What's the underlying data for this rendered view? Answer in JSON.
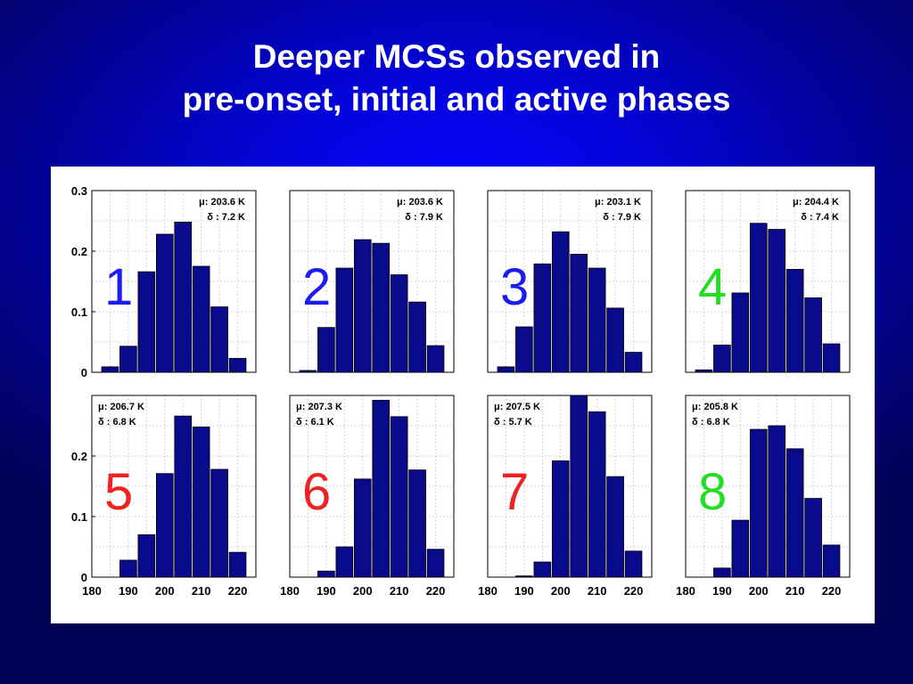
{
  "slide": {
    "title_line1": "Deeper MCSs observed in",
    "title_line2": "pre-onset, initial and active phases"
  },
  "colors": {
    "background": "#0303d8",
    "bar_fill": "#0a0a8c",
    "bar_edge": "#000000",
    "label_blue": "#1c1cf0",
    "label_green": "#22dd22",
    "label_red": "#ee2222"
  },
  "chart_data": [
    {
      "type": "bar",
      "panel_label": "1",
      "label_color": "#1c1cf0",
      "mu": "μ: 203.6 K",
      "delta": "δ : 7.2 K",
      "x": [
        185,
        190,
        195,
        200,
        205,
        210,
        215,
        220
      ],
      "values": [
        0.009,
        0.043,
        0.166,
        0.228,
        0.248,
        0.175,
        0.108,
        0.023
      ],
      "xlim": [
        180,
        225
      ],
      "ylim": [
        0,
        0.3
      ],
      "yticks": [
        "0",
        "0.1",
        "0.2",
        "0.3"
      ],
      "xticks": [],
      "grid": true
    },
    {
      "type": "bar",
      "panel_label": "2",
      "label_color": "#1c1cf0",
      "mu": "μ: 203.6 K",
      "delta": "δ : 7.9 K",
      "x": [
        185,
        190,
        195,
        200,
        205,
        210,
        215,
        220
      ],
      "values": [
        0.003,
        0.074,
        0.172,
        0.219,
        0.213,
        0.161,
        0.116,
        0.044
      ],
      "xlim": [
        180,
        225
      ],
      "ylim": [
        0,
        0.3
      ],
      "yticks": [],
      "xticks": [],
      "grid": true
    },
    {
      "type": "bar",
      "panel_label": "3",
      "label_color": "#1c1cf0",
      "mu": "μ: 203.1 K",
      "delta": "δ : 7.9 K",
      "x": [
        185,
        190,
        195,
        200,
        205,
        210,
        215,
        220
      ],
      "values": [
        0.009,
        0.075,
        0.179,
        0.232,
        0.195,
        0.172,
        0.106,
        0.033
      ],
      "xlim": [
        180,
        225
      ],
      "ylim": [
        0,
        0.3
      ],
      "yticks": [],
      "xticks": [],
      "grid": true
    },
    {
      "type": "bar",
      "panel_label": "4",
      "label_color": "#22dd22",
      "mu": "μ: 204.4 K",
      "delta": "δ : 7.4 K",
      "x": [
        185,
        190,
        195,
        200,
        205,
        210,
        215,
        220
      ],
      "values": [
        0.004,
        0.045,
        0.131,
        0.246,
        0.236,
        0.17,
        0.123,
        0.047
      ],
      "xlim": [
        180,
        225
      ],
      "ylim": [
        0,
        0.3
      ],
      "yticks": [],
      "xticks": [],
      "grid": true
    },
    {
      "type": "bar",
      "panel_label": "5",
      "label_color": "#ee2222",
      "mu": "μ: 206.7 K",
      "delta": "δ : 6.8 K",
      "x": [
        190,
        195,
        200,
        205,
        210,
        215,
        220
      ],
      "values": [
        0.028,
        0.07,
        0.171,
        0.266,
        0.248,
        0.178,
        0.041
      ],
      "xlim": [
        180,
        225
      ],
      "ylim": [
        0,
        0.3
      ],
      "yticks": [
        "0",
        "0.1",
        "0.2"
      ],
      "xticks": [
        "180",
        "190",
        "200",
        "210",
        "220"
      ],
      "grid": true
    },
    {
      "type": "bar",
      "panel_label": "6",
      "label_color": "#ee2222",
      "mu": "μ: 207.3 K",
      "delta": "δ : 6.1 K",
      "x": [
        190,
        195,
        200,
        205,
        210,
        215,
        220
      ],
      "values": [
        0.01,
        0.05,
        0.162,
        0.292,
        0.265,
        0.177,
        0.046
      ],
      "xlim": [
        180,
        225
      ],
      "ylim": [
        0,
        0.3
      ],
      "yticks": [],
      "xticks": [
        "180",
        "190",
        "200",
        "210",
        "220"
      ],
      "grid": true
    },
    {
      "type": "bar",
      "panel_label": "7",
      "label_color": "#ee2222",
      "mu": "μ: 207.5 K",
      "delta": "δ : 5.7 K",
      "x": [
        190,
        195,
        200,
        205,
        210,
        215,
        220
      ],
      "values": [
        0.002,
        0.025,
        0.192,
        0.3,
        0.273,
        0.166,
        0.043
      ],
      "xlim": [
        180,
        225
      ],
      "ylim": [
        0,
        0.3
      ],
      "yticks": [],
      "xticks": [
        "180",
        "190",
        "200",
        "210",
        "220"
      ],
      "grid": true
    },
    {
      "type": "bar",
      "panel_label": "8",
      "label_color": "#22dd22",
      "mu": "μ: 205.8 K",
      "delta": "δ : 6.8 K",
      "x": [
        190,
        195,
        200,
        205,
        210,
        215,
        220
      ],
      "values": [
        0.015,
        0.094,
        0.244,
        0.25,
        0.212,
        0.13,
        0.053
      ],
      "xlim": [
        180,
        225
      ],
      "ylim": [
        0,
        0.3
      ],
      "yticks": [],
      "xticks": [
        "180",
        "190",
        "200",
        "210",
        "220"
      ],
      "grid": true
    }
  ]
}
